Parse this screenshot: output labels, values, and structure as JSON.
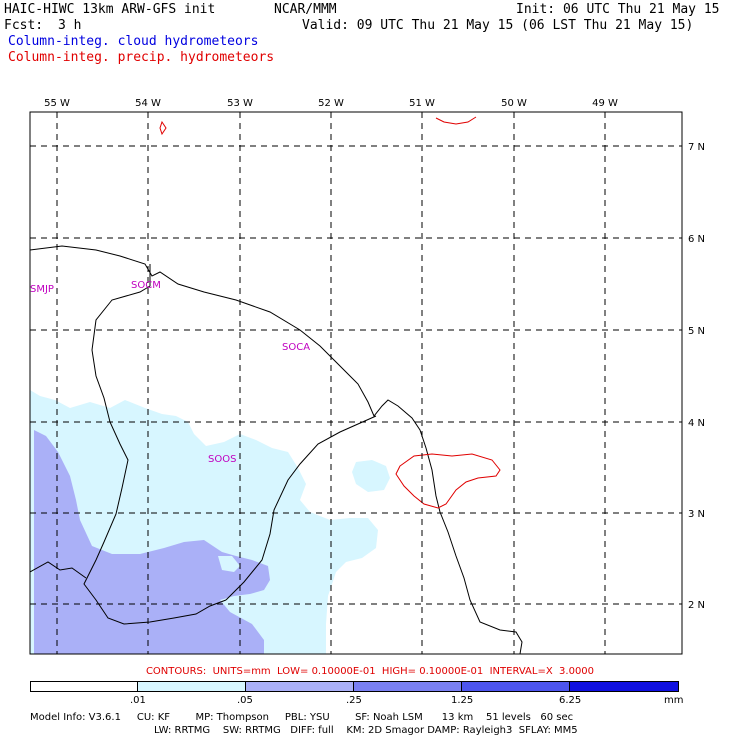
{
  "header": {
    "title": "HAIC-HIWC 13km ARW-GFS init",
    "org": "NCAR/MMM",
    "init": "Init: 06 UTC Thu 21 May 15",
    "fcst_label": "Fcst:",
    "fcst_value": "3 h",
    "valid": "Valid: 09 UTC Thu 21 May 15 (06 LST Thu 21 May 15)",
    "field1": "Column-integ. cloud hydrometeors",
    "field2": "Column-integ. precip. hydrometeors"
  },
  "map": {
    "lon_labels": [
      "55 W",
      "54 W",
      "53 W",
      "52 W",
      "51 W",
      "50 W",
      "49 W"
    ],
    "lat_labels": [
      "7 N",
      "6 N",
      "5 N",
      "4 N",
      "3 N",
      "2 N"
    ],
    "stations": [
      "SMJP",
      "SOCM",
      "SOCA",
      "SOOS"
    ],
    "colors": {
      "cloud_light": "#d7f6ff",
      "cloud_mid": "#aab0f7",
      "precip_contour": "#e00000",
      "station_text": "#c000c0"
    }
  },
  "contours_line": "CONTOURS:  UNITS=mm  LOW= 0.10000E-01  HIGH= 0.10000E-01  INTERVAL=X  3.0000",
  "scale": {
    "labels": [
      ".01",
      ".05",
      ".25",
      "1.25",
      "6.25"
    ],
    "unit": "mm",
    "colors": [
      "#ffffff",
      "#d7f6ff",
      "#aab0f7",
      "#7a80f2",
      "#4d55ee",
      "#1010e0"
    ]
  },
  "model_info": {
    "line1": "Model Info: V3.6.1     CU: KF        MP: Thompson     PBL: YSU        SF: Noah LSM      13 km    51 levels   60 sec",
    "line2": "LW: RRTMG    SW: RRTMG   DIFF: full    KM: 2D Smagor DAMP: Rayleigh3  SFLAY: MM5"
  }
}
